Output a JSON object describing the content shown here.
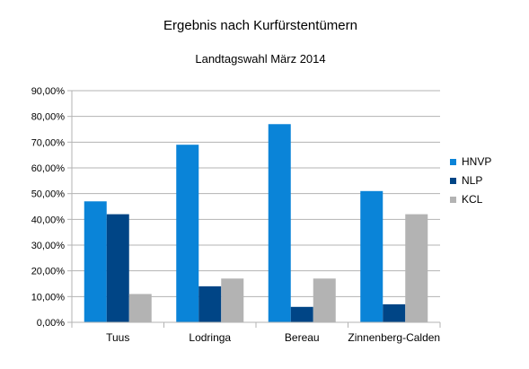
{
  "chart_data": {
    "type": "bar",
    "title": "Ergebnis nach Kurfürstentümern",
    "subtitle": "Landtagswahl März 2014",
    "categories": [
      "Tuus",
      "Lodringa",
      "Bereau",
      "Zinnenberg-Calden"
    ],
    "series": [
      {
        "name": "HNVP",
        "color": "#0a84d8",
        "values": [
          0.47,
          0.69,
          0.77,
          0.51
        ]
      },
      {
        "name": "NLP",
        "color": "#004586",
        "values": [
          0.42,
          0.14,
          0.06,
          0.07
        ]
      },
      {
        "name": "KCL",
        "color": "#b3b3b3",
        "values": [
          0.11,
          0.17,
          0.17,
          0.42
        ]
      }
    ],
    "ylim": [
      0,
      0.9
    ],
    "yticks": [
      "0,00%",
      "10,00%",
      "20,00%",
      "30,00%",
      "40,00%",
      "50,00%",
      "60,00%",
      "70,00%",
      "80,00%",
      "90,00%"
    ],
    "grid": true,
    "legend_position": "right",
    "xlabel": "",
    "ylabel": ""
  }
}
